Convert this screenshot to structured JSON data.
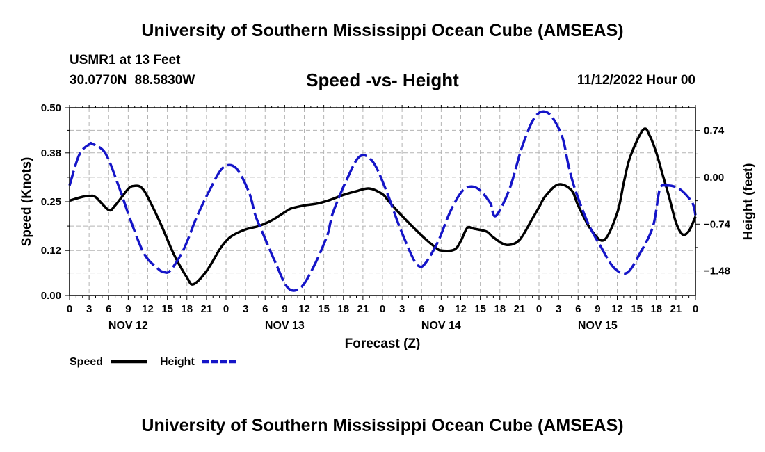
{
  "header": {
    "title": "University of Southern Mississippi Ocean Cube (AMSEAS)",
    "station": "USMR1 at 13 Feet",
    "coordinates": "30.0770N  88.5830W",
    "subtitle": "Speed -vs- Height",
    "datetime": "11/12/2022 Hour 00"
  },
  "footer": {
    "title": "University of Southern Mississippi Ocean Cube (AMSEAS)"
  },
  "chart_data": {
    "type": "line",
    "title": "Speed -vs- Height",
    "xlabel": "Forecast (Z)",
    "ylabel": "Speed (Knots)",
    "ylabel_right": "Height (feet)",
    "xlim": [
      0,
      96
    ],
    "ylim": [
      0,
      0.5
    ],
    "ylim_right": [
      -1.87,
      1.1
    ],
    "grid": true,
    "x_tick_labels": [
      "0",
      "3",
      "6",
      "9",
      "12",
      "15",
      "18",
      "21",
      "0",
      "3",
      "6",
      "9",
      "12",
      "15",
      "18",
      "21",
      "0",
      "3",
      "6",
      "9",
      "12",
      "15",
      "18",
      "21",
      "0",
      "3",
      "6",
      "9",
      "12",
      "15",
      "18",
      "21",
      "0"
    ],
    "date_labels": [
      {
        "x": 9,
        "label": "NOV 12"
      },
      {
        "x": 33,
        "label": "NOV 13"
      },
      {
        "x": 57,
        "label": "NOV 14"
      },
      {
        "x": 81,
        "label": "NOV 15"
      }
    ],
    "y_ticks": [
      0.0,
      0.12,
      0.25,
      0.38,
      0.5
    ],
    "y_tick_labels": [
      "0.00",
      "0.12",
      "0.25",
      "0.38",
      "0.50"
    ],
    "y_ticks_right": [
      0.74,
      0.0,
      -0.74,
      -1.48
    ],
    "y_tick_labels_right": [
      "0.74",
      "0.00",
      "−0.74",
      "−1.48"
    ],
    "legend_position": "bottom-left",
    "series": [
      {
        "name": "Speed",
        "axis": "left",
        "color": "#000000",
        "style": "solid",
        "x": [
          0,
          2,
          3,
          4,
          6,
          7,
          9,
          10,
          11,
          12,
          14,
          16,
          18,
          19,
          21,
          23,
          24,
          25,
          27,
          29,
          31,
          33,
          34,
          36,
          38,
          40,
          42,
          44,
          46,
          48,
          49,
          51,
          54,
          56,
          57,
          59,
          60,
          61,
          62,
          64,
          65,
          67,
          69,
          71,
          72,
          73,
          75,
          77,
          78,
          80,
          82,
          84,
          85,
          86,
          88,
          89,
          90,
          91,
          92,
          93,
          94,
          95,
          96
        ],
        "y": [
          0.253,
          0.263,
          0.265,
          0.262,
          0.228,
          0.24,
          0.284,
          0.292,
          0.288,
          0.262,
          0.19,
          0.11,
          0.048,
          0.03,
          0.065,
          0.122,
          0.145,
          0.16,
          0.176,
          0.185,
          0.2,
          0.222,
          0.232,
          0.24,
          0.245,
          0.255,
          0.268,
          0.278,
          0.285,
          0.27,
          0.25,
          0.212,
          0.16,
          0.13,
          0.12,
          0.122,
          0.145,
          0.18,
          0.178,
          0.17,
          0.155,
          0.135,
          0.148,
          0.205,
          0.235,
          0.265,
          0.296,
          0.28,
          0.24,
          0.175,
          0.148,
          0.22,
          0.3,
          0.37,
          0.442,
          0.425,
          0.38,
          0.32,
          0.26,
          0.195,
          0.163,
          0.172,
          0.21
        ]
      },
      {
        "name": "Height",
        "axis": "right",
        "color": "#1515c8",
        "style": "dashed",
        "x": [
          0,
          1.5,
          3,
          3.5,
          5.5,
          7.5,
          9.5,
          11.5,
          13.5,
          14.5,
          15.5,
          17.5,
          19.5,
          21.5,
          23.5,
          25.5,
          27.5,
          28.5,
          29.5,
          31.5,
          33.5,
          35.5,
          37.5,
          39.5,
          40,
          40.5,
          42.5,
          44.5,
          46.5,
          48.5,
          50.5,
          52.5,
          53.5,
          54.5,
          56.5,
          58.5,
          60.5,
          62.5,
          64.5,
          64.8,
          65.5,
          67.5,
          69.5,
          71.5,
          73.5,
          75.5,
          76.5,
          77.5,
          79.5,
          81.5,
          83.5,
          85.5,
          87.5,
          89.5,
          90.5,
          91.5,
          93.5,
          95.5,
          96
        ],
        "y": [
          -0.13,
          0.36,
          0.52,
          0.53,
          0.38,
          -0.13,
          -0.72,
          -1.22,
          -1.44,
          -1.5,
          -1.47,
          -1.14,
          -0.63,
          -0.2,
          0.15,
          0.15,
          -0.23,
          -0.6,
          -0.85,
          -1.33,
          -1.75,
          -1.74,
          -1.4,
          -0.93,
          -0.72,
          -0.53,
          -0.04,
          0.33,
          0.25,
          -0.19,
          -0.75,
          -1.24,
          -1.4,
          -1.37,
          -1.02,
          -0.52,
          -0.19,
          -0.17,
          -0.4,
          -0.52,
          -0.6,
          -0.18,
          0.51,
          0.97,
          1.01,
          0.66,
          0.2,
          -0.18,
          -0.72,
          -1.1,
          -1.43,
          -1.51,
          -1.2,
          -0.77,
          -0.2,
          -0.13,
          -0.18,
          -0.4,
          -0.6
        ]
      }
    ]
  }
}
